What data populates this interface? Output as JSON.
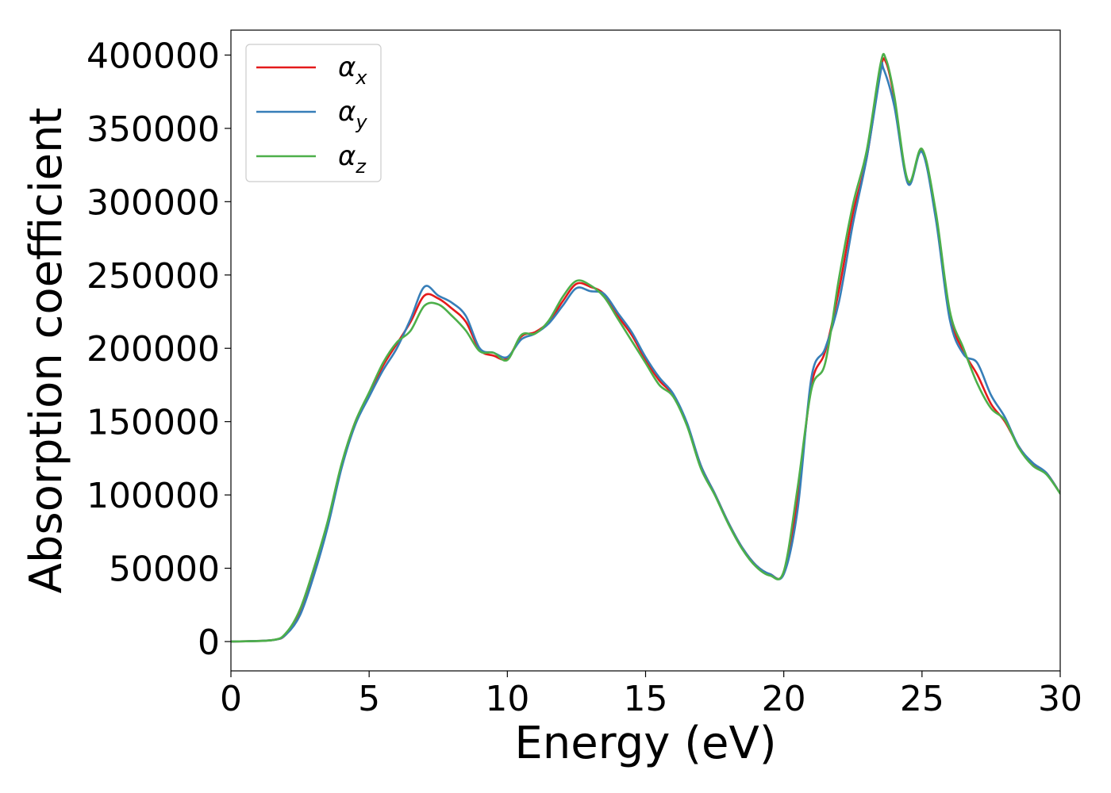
{
  "chart_data": {
    "type": "line",
    "xlabel": "Energy (eV)",
    "ylabel": "Absorption coefficient",
    "xlim": [
      0,
      30
    ],
    "ylim": [
      -20000,
      417000
    ],
    "xticks": [
      0,
      5,
      10,
      15,
      20,
      25,
      30
    ],
    "xtick_labels": [
      "0",
      "5",
      "10",
      "15",
      "20",
      "25",
      "30"
    ],
    "yticks": [
      0,
      50000,
      100000,
      150000,
      200000,
      250000,
      300000,
      350000,
      400000
    ],
    "ytick_labels": [
      "0",
      "50000",
      "100000",
      "150000",
      "200000",
      "250000",
      "300000",
      "350000",
      "400000"
    ],
    "grid": false,
    "legend_position": "top-left",
    "series": [
      {
        "name": "α",
        "subscript": "x",
        "color": "#e41a1c",
        "points": [
          [
            0,
            0
          ],
          [
            1.5,
            1000
          ],
          [
            2,
            5000
          ],
          [
            2.5,
            20000
          ],
          [
            3,
            47000
          ],
          [
            3.5,
            80000
          ],
          [
            4,
            120000
          ],
          [
            4.5,
            150000
          ],
          [
            5,
            168000
          ],
          [
            5.5,
            188000
          ],
          [
            6,
            203000
          ],
          [
            6.5,
            218000
          ],
          [
            7,
            236000
          ],
          [
            7.5,
            234000
          ],
          [
            8,
            227000
          ],
          [
            8.5,
            218000
          ],
          [
            9,
            199000
          ],
          [
            9.5,
            195000
          ],
          [
            10,
            193000
          ],
          [
            10.5,
            208000
          ],
          [
            11,
            211000
          ],
          [
            11.5,
            218000
          ],
          [
            12,
            232000
          ],
          [
            12.5,
            244000
          ],
          [
            13,
            242000
          ],
          [
            13.5,
            237000
          ],
          [
            14,
            222000
          ],
          [
            14.5,
            209000
          ],
          [
            15,
            192000
          ],
          [
            15.5,
            178000
          ],
          [
            16,
            168000
          ],
          [
            16.5,
            148000
          ],
          [
            17,
            120000
          ],
          [
            17.5,
            101000
          ],
          [
            18,
            81000
          ],
          [
            18.5,
            64000
          ],
          [
            19,
            52000
          ],
          [
            19.5,
            46000
          ],
          [
            20,
            47000
          ],
          [
            20.5,
            98000
          ],
          [
            21,
            175000
          ],
          [
            21.5,
            198000
          ],
          [
            22,
            240000
          ],
          [
            22.5,
            292000
          ],
          [
            23,
            330000
          ],
          [
            23.5,
            390000
          ],
          [
            23.7,
            395000
          ],
          [
            24,
            370000
          ],
          [
            24.5,
            313000
          ],
          [
            25,
            335000
          ],
          [
            25.5,
            290000
          ],
          [
            26,
            223000
          ],
          [
            26.5,
            198000
          ],
          [
            27,
            182000
          ],
          [
            27.5,
            162000
          ],
          [
            28,
            150000
          ],
          [
            28.5,
            133000
          ],
          [
            29,
            121000
          ],
          [
            29.5,
            115000
          ],
          [
            30,
            101000
          ]
        ]
      },
      {
        "name": "α",
        "subscript": "y",
        "color": "#377eb8",
        "points": [
          [
            0,
            0
          ],
          [
            1.5,
            1000
          ],
          [
            2,
            5000
          ],
          [
            2.5,
            18000
          ],
          [
            3,
            45000
          ],
          [
            3.5,
            78000
          ],
          [
            4,
            118000
          ],
          [
            4.5,
            148000
          ],
          [
            5,
            167000
          ],
          [
            5.5,
            185000
          ],
          [
            6,
            200000
          ],
          [
            6.5,
            220000
          ],
          [
            7,
            242000
          ],
          [
            7.5,
            236000
          ],
          [
            8,
            231000
          ],
          [
            8.5,
            222000
          ],
          [
            9,
            200000
          ],
          [
            9.5,
            197000
          ],
          [
            10,
            194000
          ],
          [
            10.5,
            206000
          ],
          [
            11,
            210000
          ],
          [
            11.5,
            217000
          ],
          [
            12,
            229000
          ],
          [
            12.5,
            241000
          ],
          [
            13,
            239000
          ],
          [
            13.5,
            237000
          ],
          [
            14,
            224000
          ],
          [
            14.5,
            211000
          ],
          [
            15,
            194000
          ],
          [
            15.5,
            180000
          ],
          [
            16,
            169000
          ],
          [
            16.5,
            149000
          ],
          [
            17,
            120000
          ],
          [
            17.5,
            101000
          ],
          [
            18,
            81000
          ],
          [
            18.5,
            64000
          ],
          [
            19,
            52000
          ],
          [
            19.5,
            46000
          ],
          [
            20,
            46000
          ],
          [
            20.5,
            90000
          ],
          [
            21,
            180000
          ],
          [
            21.5,
            200000
          ],
          [
            22,
            232000
          ],
          [
            22.5,
            285000
          ],
          [
            23,
            330000
          ],
          [
            23.5,
            388000
          ],
          [
            23.6,
            391000
          ],
          [
            24,
            365000
          ],
          [
            24.5,
            312000
          ],
          [
            25,
            334000
          ],
          [
            25.5,
            288000
          ],
          [
            26,
            220000
          ],
          [
            26.5,
            196000
          ],
          [
            27,
            190000
          ],
          [
            27.5,
            168000
          ],
          [
            28,
            153000
          ],
          [
            28.5,
            133000
          ],
          [
            29,
            122000
          ],
          [
            29.5,
            115000
          ],
          [
            30,
            101000
          ]
        ]
      },
      {
        "name": "α",
        "subscript": "z",
        "color": "#4daf4a",
        "points": [
          [
            0,
            0
          ],
          [
            1.5,
            1000
          ],
          [
            2,
            6000
          ],
          [
            2.5,
            22000
          ],
          [
            3,
            50000
          ],
          [
            3.5,
            82000
          ],
          [
            4,
            121000
          ],
          [
            4.5,
            150000
          ],
          [
            5,
            170000
          ],
          [
            5.5,
            190000
          ],
          [
            6,
            204000
          ],
          [
            6.5,
            212000
          ],
          [
            7,
            229000
          ],
          [
            7.5,
            230000
          ],
          [
            8,
            222000
          ],
          [
            8.5,
            212000
          ],
          [
            9,
            198000
          ],
          [
            9.5,
            197000
          ],
          [
            10,
            192000
          ],
          [
            10.5,
            209000
          ],
          [
            11,
            210000
          ],
          [
            11.5,
            219000
          ],
          [
            12,
            235000
          ],
          [
            12.5,
            246000
          ],
          [
            13,
            243000
          ],
          [
            13.5,
            235000
          ],
          [
            14,
            220000
          ],
          [
            14.5,
            205000
          ],
          [
            15,
            190000
          ],
          [
            15.5,
            175000
          ],
          [
            16,
            167000
          ],
          [
            16.5,
            147000
          ],
          [
            17,
            118000
          ],
          [
            17.5,
            100000
          ],
          [
            18,
            80000
          ],
          [
            18.5,
            63000
          ],
          [
            19,
            51000
          ],
          [
            19.5,
            45000
          ],
          [
            20,
            48000
          ],
          [
            20.5,
            105000
          ],
          [
            21,
            172000
          ],
          [
            21.5,
            190000
          ],
          [
            22,
            248000
          ],
          [
            22.5,
            298000
          ],
          [
            23,
            335000
          ],
          [
            23.5,
            394000
          ],
          [
            23.7,
            397000
          ],
          [
            24,
            372000
          ],
          [
            24.5,
            314000
          ],
          [
            25,
            336000
          ],
          [
            25.5,
            293000
          ],
          [
            26,
            226000
          ],
          [
            26.5,
            200000
          ],
          [
            27,
            176000
          ],
          [
            27.5,
            159000
          ],
          [
            28,
            151000
          ],
          [
            28.5,
            132000
          ],
          [
            29,
            120000
          ],
          [
            29.5,
            114000
          ],
          [
            30,
            101000
          ]
        ]
      }
    ]
  }
}
